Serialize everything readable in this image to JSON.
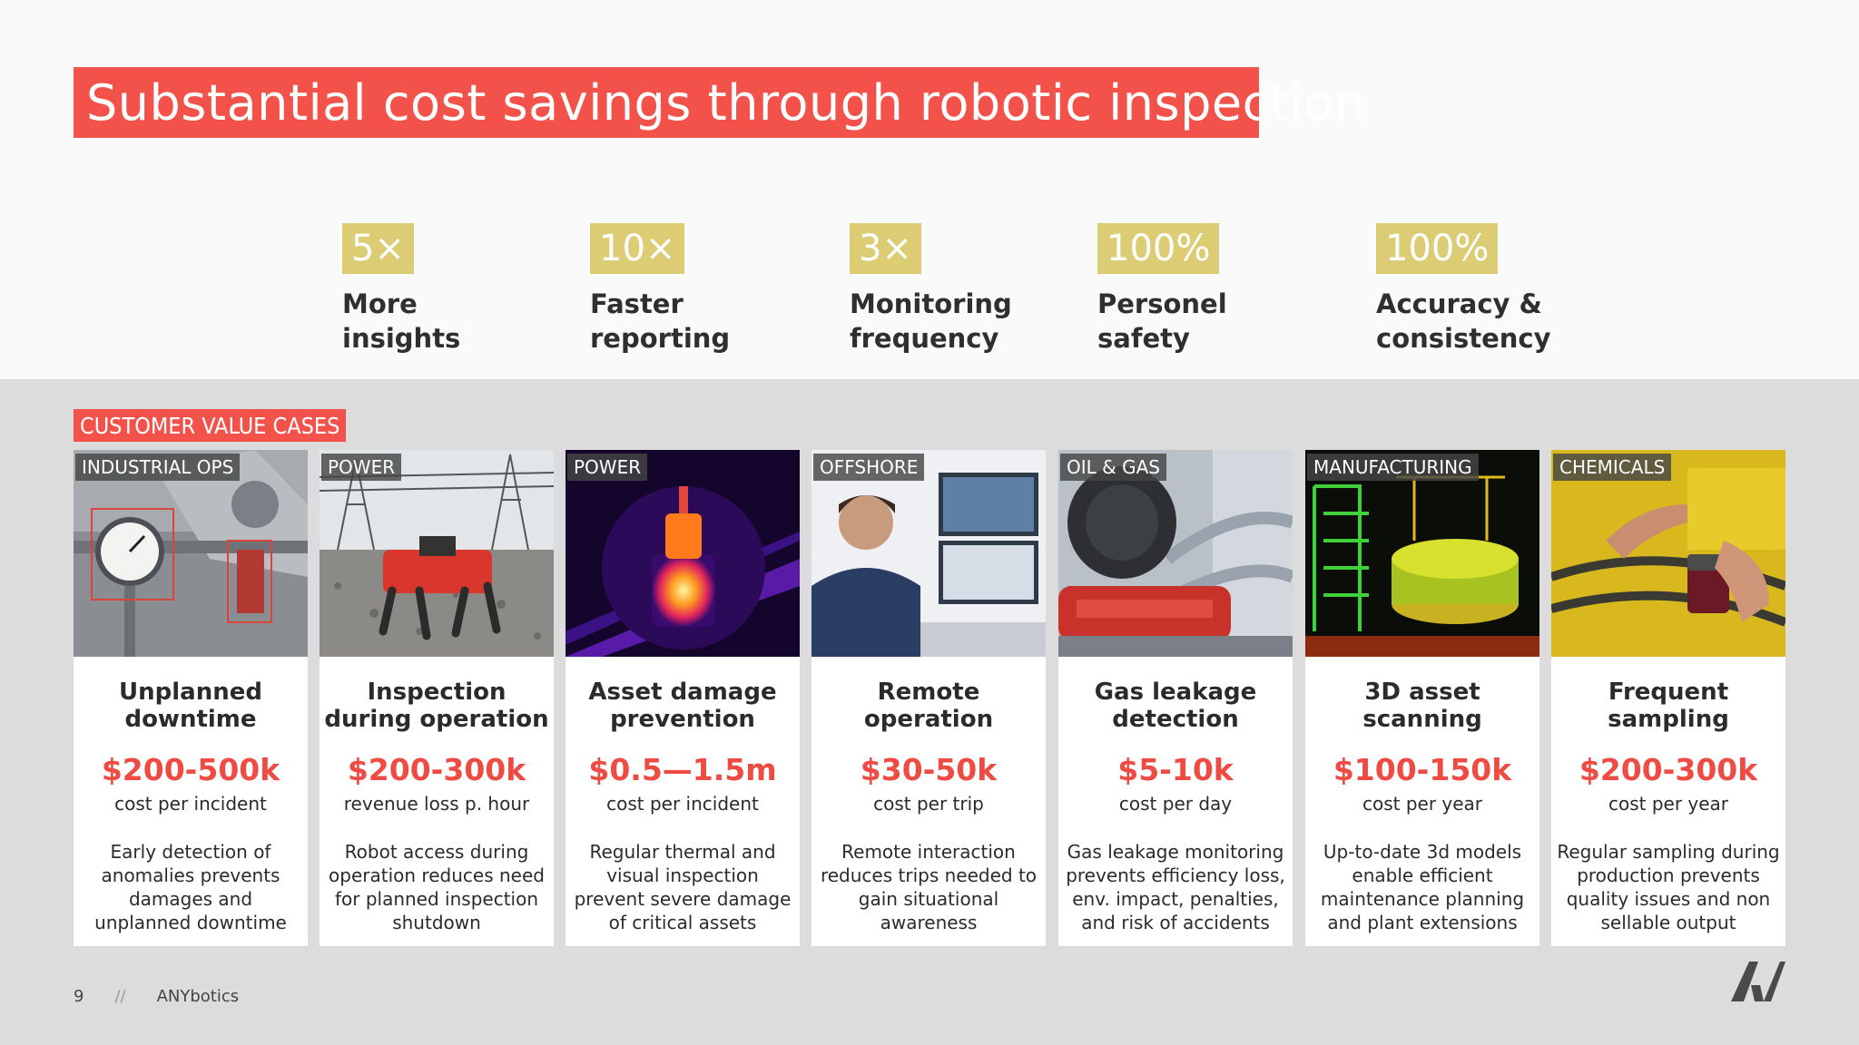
{
  "title": "Substantial cost savings through robotic inspection",
  "stats": [
    {
      "value": "5×",
      "label": "More insights"
    },
    {
      "value": "10×",
      "label": "Faster reporting"
    },
    {
      "value": "3×",
      "label": "Monitoring frequency"
    },
    {
      "value": "100%",
      "label": "Personel safety"
    },
    {
      "value": "100%",
      "label": "Accuracy & consistency"
    }
  ],
  "section_label": "CUSTOMER VALUE CASES",
  "cards": [
    {
      "category": "INDUSTRIAL OPS",
      "title": "Unplanned downtime",
      "value": "$200-500k",
      "unit": "cost per incident",
      "description": "Early detection of anomalies prevents damages and unplanned downtime"
    },
    {
      "category": "POWER",
      "title": "Inspection during operation",
      "value": "$200-300k",
      "unit": "revenue loss p. hour",
      "description": "Robot access during operation reduces need for planned inspection shutdown"
    },
    {
      "category": "POWER",
      "title": "Asset damage prevention",
      "value": "$0.5—1.5m",
      "unit": "cost per incident",
      "description": "Regular thermal and visual inspection prevent severe damage of critical assets"
    },
    {
      "category": "OFFSHORE",
      "title": "Remote operation",
      "value": "$30-50k",
      "unit": "cost per trip",
      "description": "Remote interaction reduces trips needed to gain situational awareness"
    },
    {
      "category": "OIL & GAS",
      "title": "Gas leakage detection",
      "value": "$5-10k",
      "unit": "cost per day",
      "description": "Gas leakage monitoring prevents efficiency loss, env. impact, penalties, and risk of accidents"
    },
    {
      "category": "MANUFACTURING",
      "title": "3D asset scanning",
      "value": "$100-150k",
      "unit": "cost per year",
      "description": "Up-to-date 3d models enable efficient maintenance planning and plant extensions"
    },
    {
      "category": "CHEMICALS",
      "title": "Frequent sampling",
      "value": "$200-300k",
      "unit": "cost per year",
      "description": "Regular sampling during production prevents quality issues and non sellable output"
    }
  ],
  "footer": {
    "page_number": "9",
    "separator": "//",
    "brand": "ANYbotics"
  },
  "colors": {
    "accent": "#f2524a",
    "gold": "#dccd75",
    "value_red": "#ee4b43"
  }
}
